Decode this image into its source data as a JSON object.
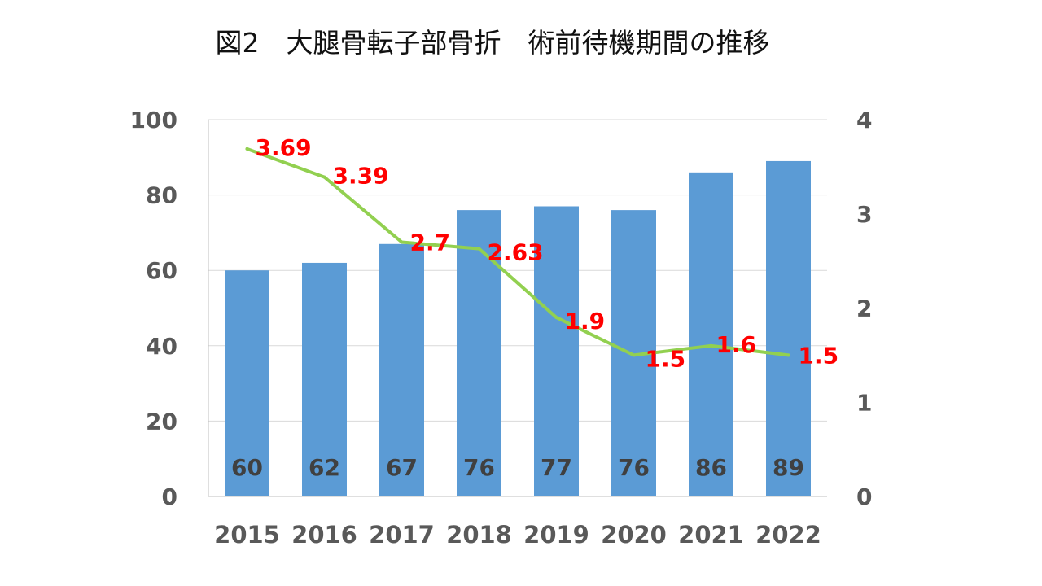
{
  "chart_data": {
    "type": "bar",
    "title": "図2　大腿骨転子部骨折　術前待機期間の推移",
    "categories": [
      "2015",
      "2016",
      "2017",
      "2018",
      "2019",
      "2020",
      "2021",
      "2022"
    ],
    "series": [
      {
        "kind": "bar",
        "axis": "left",
        "values": [
          60,
          62,
          67,
          76,
          77,
          76,
          86,
          89
        ],
        "data_labels": [
          "60",
          "62",
          "67",
          "76",
          "77",
          "76",
          "86",
          "89"
        ],
        "color": "#5b9bd5"
      },
      {
        "kind": "line",
        "axis": "right",
        "values": [
          3.69,
          3.39,
          2.7,
          2.63,
          1.9,
          1.5,
          1.6,
          1.5
        ],
        "data_labels": [
          "3.69",
          "3.39",
          "2.7",
          "2.63",
          "1.9",
          "1.5",
          "1.6",
          "1.5"
        ],
        "color": "#92d050",
        "label_color": "#ff0000"
      }
    ],
    "y_left": {
      "ylim": [
        0,
        100
      ],
      "ticks": [
        "0",
        "20",
        "40",
        "60",
        "80",
        "100"
      ]
    },
    "y_right": {
      "ylim": [
        0,
        4
      ],
      "ticks": [
        "0",
        "1",
        "2",
        "3",
        "4"
      ]
    },
    "grid": true,
    "legend": "none"
  }
}
